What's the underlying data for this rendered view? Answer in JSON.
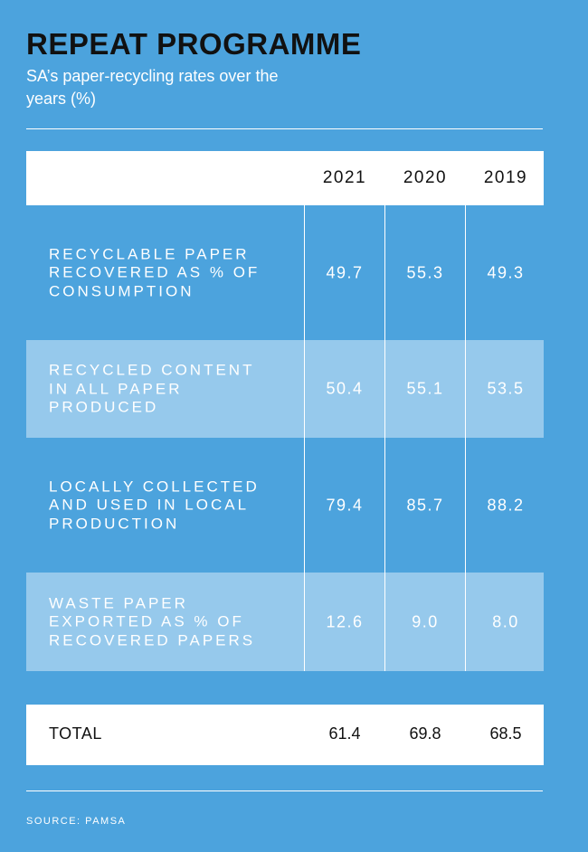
{
  "header": {
    "title": "REPEAT PROGRAMME",
    "subtitle": "SA’s paper-recycling rates over the years (%)"
  },
  "table": {
    "columns": [
      "2021",
      "2020",
      "2019"
    ],
    "rows": [
      {
        "label": "Recyclable paper recovered as % of consumption",
        "values": [
          "49.7",
          "55.3",
          "49.3"
        ]
      },
      {
        "label": "Recycled content in all paper produced",
        "values": [
          "50.4",
          "55.1",
          "53.5"
        ]
      },
      {
        "label": "Locally collected and used in local production",
        "values": [
          "79.4",
          "85.7",
          "88.2"
        ]
      },
      {
        "label": "Waste paper exported as % of recovered papers",
        "values": [
          "12.6",
          "9.0",
          "8.0"
        ]
      }
    ],
    "total": {
      "label": "TOTAL",
      "values": [
        "61.4",
        "69.8",
        "68.5"
      ]
    }
  },
  "source": "SOURCE: PAMSA",
  "colors": {
    "background": "#4ca3dd",
    "alt_row": "#96c9ec",
    "title": "#111111"
  },
  "chart_data": {
    "type": "table",
    "title": "REPEAT PROGRAMME",
    "subtitle": "SA’s paper-recycling rates over the years (%)",
    "categories": [
      "2021",
      "2020",
      "2019"
    ],
    "series": [
      {
        "name": "Recyclable paper recovered as % of consumption",
        "values": [
          49.7,
          55.3,
          49.3
        ]
      },
      {
        "name": "Recycled content in all paper produced",
        "values": [
          50.4,
          55.1,
          53.5
        ]
      },
      {
        "name": "Locally collected and used in local production",
        "values": [
          79.4,
          85.7,
          88.2
        ]
      },
      {
        "name": "Waste paper exported as % of recovered papers",
        "values": [
          12.6,
          9.0,
          8.0
        ]
      },
      {
        "name": "TOTAL",
        "values": [
          61.4,
          69.8,
          68.5
        ]
      }
    ]
  }
}
